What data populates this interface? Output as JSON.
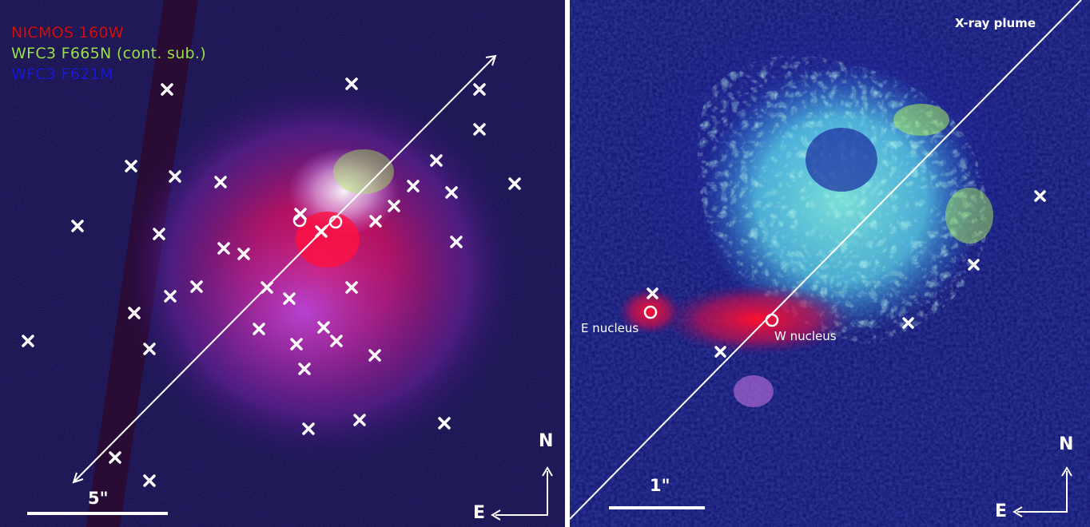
{
  "left_panel": {
    "legend": [
      {
        "text": "NICMOS 160W",
        "color": "#d01010"
      },
      {
        "text": "WFC3 F665N (cont. sub.)",
        "color": "#9be24a"
      },
      {
        "text": "WFC3 F621M",
        "color": "#1a1ad8"
      }
    ],
    "scale_bar_label": "5\"",
    "compass": {
      "north": "N",
      "east": "E"
    }
  },
  "right_panel": {
    "plume_label": "X-ray plume",
    "e_nucleus_label": "E nucleus",
    "w_nucleus_label": "W nucleus",
    "scale_bar_label": "1\"",
    "compass": {
      "north": "N",
      "east": "E"
    }
  },
  "colors": {
    "background": "#0a0a3c",
    "halpha_green": "#7fe8a0",
    "nir_red": "#e0103a",
    "markers": "#ffffff"
  }
}
